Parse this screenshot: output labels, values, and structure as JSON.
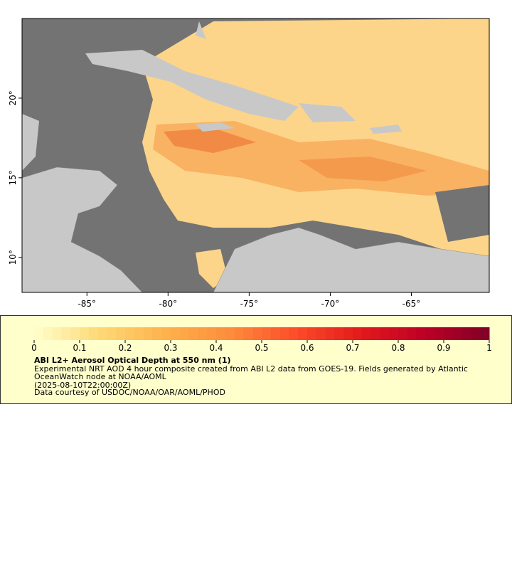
{
  "map": {
    "xlim": [
      -89,
      -60.2
    ],
    "ylim": [
      7.8,
      25
    ],
    "xticks": [
      {
        "value": -85,
        "label": "-85°"
      },
      {
        "value": -80,
        "label": "-80°"
      },
      {
        "value": -75,
        "label": "-75°"
      },
      {
        "value": -70,
        "label": "-70°"
      },
      {
        "value": -65,
        "label": "-65°"
      }
    ],
    "yticks": [
      {
        "value": 10,
        "label": "10°"
      },
      {
        "value": 15,
        "label": "15°"
      },
      {
        "value": 20,
        "label": "20°"
      }
    ]
  },
  "colorbar": {
    "lim": [
      0,
      1
    ],
    "ticks": [
      0,
      0.1,
      0.2,
      0.3,
      0.4,
      0.5,
      0.6,
      0.7,
      0.8,
      0.9,
      1
    ],
    "colors": [
      "#ffffcc",
      "#fed976",
      "#feb24c",
      "#fd8d3c",
      "#fc4e2a",
      "#e31a1c",
      "#bd0026",
      "#800026"
    ]
  },
  "legend": {
    "title": "ABI L2+ Aerosol Optical Depth at 550 nm (1)",
    "lines": [
      "Experimental NRT AOD 4 hour composite created from ABI L2 data from GOES-19. Fields generated by Atlantic",
      "OceanWatch node at NOAA/AOML",
      "(2025-08-10T22:00:00Z)",
      "Data courtesy of USDOC/NOAA/OAR/AOML/PHOD"
    ]
  }
}
